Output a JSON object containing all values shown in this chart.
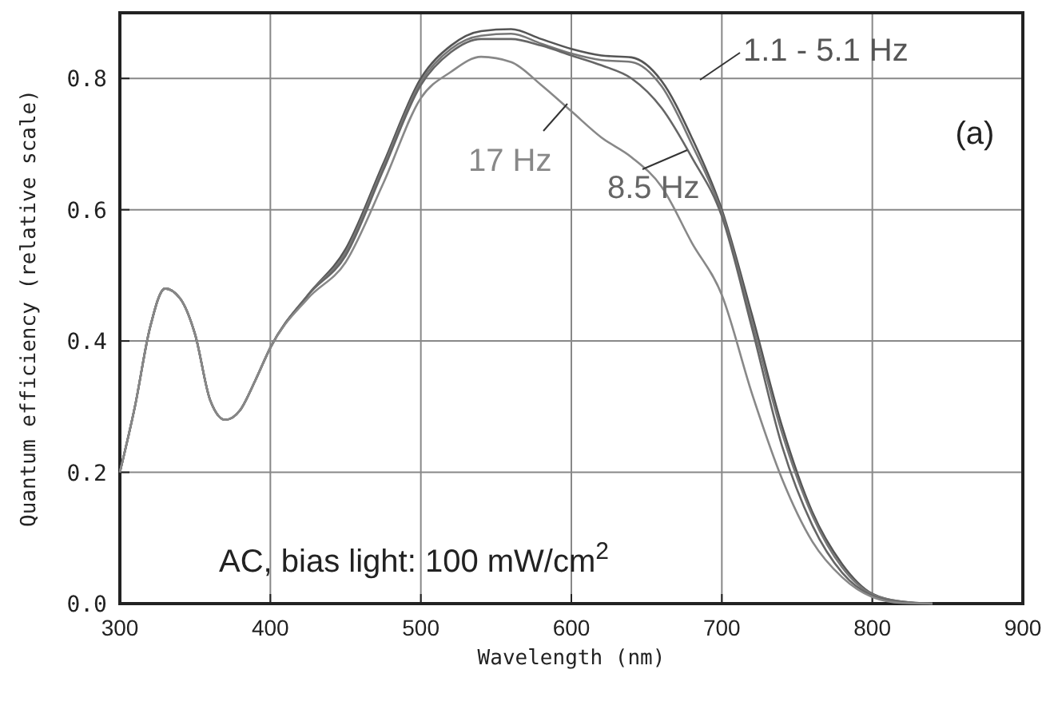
{
  "chart_data": {
    "type": "line",
    "xlabel": "Wavelength (nm)",
    "ylabel": "Quantum efficiency (relative scale)",
    "xlim": [
      300,
      900
    ],
    "xticks": [
      300,
      400,
      500,
      600,
      700,
      800,
      900
    ],
    "ylim": [
      0,
      0.9
    ],
    "yticks": [
      {
        "value": 0,
        "label": "0.0"
      },
      0.2,
      0.4,
      0.6,
      0.8
    ],
    "grid": true,
    "marker": "none",
    "line_style": "solid",
    "x": [
      300,
      310,
      320,
      330,
      340,
      350,
      360,
      370,
      380,
      390,
      400,
      425,
      450,
      475,
      500,
      520,
      540,
      560,
      580,
      600,
      620,
      640,
      660,
      680,
      700,
      720,
      740,
      760,
      780,
      800,
      820,
      840
    ],
    "series": [
      {
        "name": "1.1 - 5.1 Hz",
        "color": "#555555",
        "values": [
          0.2,
          0.3,
          0.42,
          0.48,
          0.465,
          0.41,
          0.31,
          0.28,
          0.295,
          0.34,
          0.39,
          0.47,
          0.54,
          0.67,
          0.8,
          0.85,
          0.872,
          0.875,
          0.86,
          0.845,
          0.835,
          0.832,
          0.796,
          0.71,
          0.6,
          0.44,
          0.27,
          0.14,
          0.06,
          0.015,
          0.003,
          0
        ]
      },
      {
        "color": "#777777",
        "values": [
          0.2,
          0.3,
          0.42,
          0.48,
          0.465,
          0.41,
          0.31,
          0.28,
          0.295,
          0.34,
          0.39,
          0.47,
          0.535,
          0.665,
          0.795,
          0.845,
          0.865,
          0.868,
          0.853,
          0.838,
          0.828,
          0.825,
          0.788,
          0.7,
          0.595,
          0.43,
          0.26,
          0.135,
          0.055,
          0.014,
          0.003,
          0
        ]
      },
      {
        "name": "8.5 Hz",
        "color": "#666666",
        "values": [
          0.2,
          0.3,
          0.42,
          0.48,
          0.465,
          0.41,
          0.31,
          0.28,
          0.295,
          0.34,
          0.39,
          0.47,
          0.53,
          0.66,
          0.79,
          0.84,
          0.86,
          0.86,
          0.85,
          0.835,
          0.82,
          0.8,
          0.755,
          0.68,
          0.59,
          0.42,
          0.24,
          0.12,
          0.047,
          0.012,
          0.002,
          0
        ]
      },
      {
        "name": "17 Hz",
        "color": "#888888",
        "values": [
          0.2,
          0.3,
          0.42,
          0.48,
          0.465,
          0.41,
          0.31,
          0.28,
          0.295,
          0.34,
          0.39,
          0.465,
          0.52,
          0.64,
          0.77,
          0.81,
          0.833,
          0.825,
          0.79,
          0.75,
          0.71,
          0.68,
          0.635,
          0.55,
          0.47,
          0.32,
          0.19,
          0.095,
          0.04,
          0.01,
          0.001,
          0
        ]
      }
    ],
    "annotations": [
      "AC, bias light: 100 mW/cm$^{2}$",
      "(a)"
    ]
  }
}
